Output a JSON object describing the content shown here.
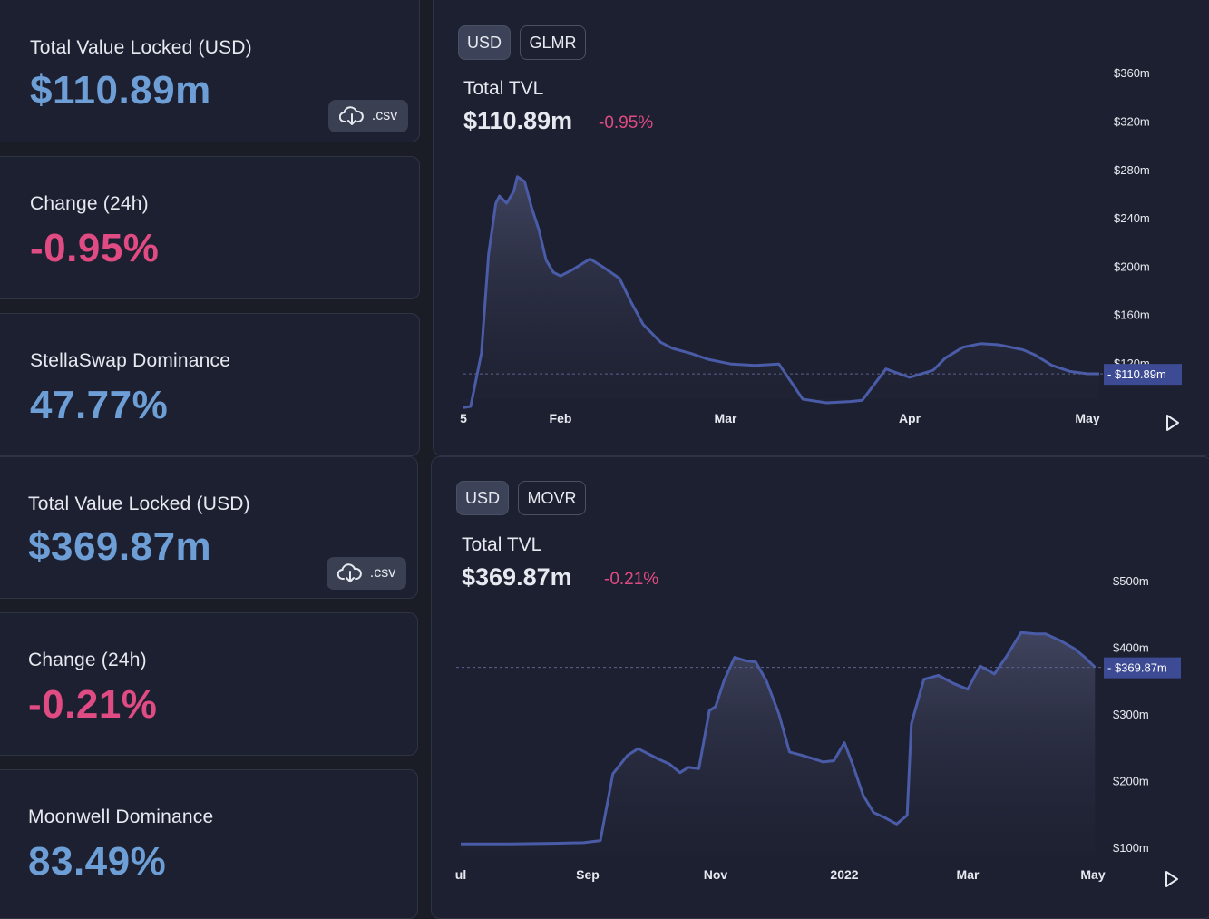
{
  "panel1": {
    "tvl_label": "Total Value Locked (USD)",
    "tvl_value": "$110.89m",
    "csv_label": ".csv",
    "change_label": "Change (24h)",
    "change_value": "-0.95%",
    "dominance_label": "StellaSwap Dominance",
    "dominance_value": "47.77%"
  },
  "chart1": {
    "toggles": [
      "USD",
      "GLMR"
    ],
    "active_toggle": "USD",
    "title": "Total TVL",
    "value": "$110.89m",
    "change": "-0.95%",
    "y_ticks": [
      "$360m",
      "$320m",
      "$280m",
      "$240m",
      "$200m",
      "$160m",
      "$120m"
    ],
    "x_ticks": [
      "5",
      "Feb",
      "Mar",
      "Apr",
      "May"
    ],
    "current_label": "$110.89m"
  },
  "panel2": {
    "tvl_label": "Total Value Locked (USD)",
    "tvl_value": "$369.87m",
    "csv_label": ".csv",
    "change_label": "Change (24h)",
    "change_value": "-0.21%",
    "dominance_label": "Moonwell Dominance",
    "dominance_value": "83.49%"
  },
  "chart2": {
    "toggles": [
      "USD",
      "MOVR"
    ],
    "active_toggle": "USD",
    "title": "Total TVL",
    "value": "$369.87m",
    "change": "-0.21%",
    "y_ticks": [
      "$500m",
      "$400m",
      "$300m",
      "$200m",
      "$100m"
    ],
    "x_ticks": [
      "ul",
      "Sep",
      "Nov",
      "2022",
      "Mar",
      "May"
    ],
    "current_label": "$369.87m"
  },
  "colors": {
    "line": "#4a5ba8",
    "current_label_bg": "#3d4a94",
    "negative": "#e14b83",
    "value_blue": "#6d9fd6"
  },
  "chart_data": [
    {
      "type": "area",
      "title": "Total TVL",
      "ylim": [
        80,
        370
      ],
      "current": 110.89,
      "x": [
        "2022-01-05",
        "2022-01-07",
        "2022-01-10",
        "2022-01-12",
        "2022-01-14",
        "2022-01-15",
        "2022-01-17",
        "2022-01-19",
        "2022-01-20",
        "2022-01-22",
        "2022-01-24",
        "2022-01-26",
        "2022-01-28",
        "2022-01-30",
        "2022-02-01",
        "2022-02-03",
        "2022-02-06",
        "2022-02-08",
        "2022-02-11",
        "2022-02-13",
        "2022-02-15",
        "2022-02-18",
        "2022-02-20",
        "2022-02-23",
        "2022-02-26",
        "2022-02-28",
        "2022-03-02",
        "2022-03-06",
        "2022-03-10",
        "2022-03-14",
        "2022-03-18",
        "2022-03-22",
        "2022-03-24",
        "2022-03-24",
        "2022-03-28",
        "2022-04-01",
        "2022-04-05",
        "2022-04-07",
        "2022-04-10",
        "2022-04-13",
        "2022-04-16",
        "2022-04-20",
        "2022-04-22",
        "2022-04-25",
        "2022-04-28",
        "2022-05-01",
        "2022-05-03"
      ],
      "values": [
        83,
        84,
        128,
        210,
        252,
        258,
        252,
        262,
        274,
        270,
        248,
        230,
        205,
        195,
        192,
        197,
        206,
        200,
        190,
        170,
        152,
        137,
        132,
        128,
        123,
        121,
        119,
        118,
        119,
        90,
        87,
        88,
        89,
        89,
        115,
        108,
        114,
        124,
        133,
        136,
        135,
        131,
        127,
        118,
        113,
        111,
        111
      ]
    },
    {
      "type": "area",
      "ylim": [
        90,
        520
      ],
      "current": 369.87,
      "x": [
        "2021-07-01",
        "2021-07-25",
        "2021-08-15",
        "2021-08-30",
        "2021-09-07",
        "2021-09-13",
        "2021-09-20",
        "2021-09-25",
        "2021-09-30",
        "2021-10-05",
        "2021-10-10",
        "2021-10-15",
        "2021-10-19",
        "2021-10-24",
        "2021-10-29",
        "2021-11-01",
        "2021-11-05",
        "2021-11-10",
        "2021-11-15",
        "2021-11-20",
        "2021-11-25",
        "2021-12-01",
        "2021-12-06",
        "2021-12-12",
        "2021-12-17",
        "2021-12-22",
        "2021-12-27",
        "2022-01-01",
        "2022-01-05",
        "2022-01-10",
        "2022-01-15",
        "2022-01-20",
        "2022-01-26",
        "2022-01-31",
        "2022-02-02",
        "2022-02-08",
        "2022-02-15",
        "2022-02-22",
        "2022-03-01",
        "2022-03-07",
        "2022-03-14",
        "2022-03-20",
        "2022-03-27",
        "2022-04-03",
        "2022-04-08",
        "2022-04-15",
        "2022-04-22",
        "2022-04-27",
        "2022-05-02"
      ],
      "values": [
        105,
        105,
        106,
        107,
        110,
        210,
        238,
        248,
        240,
        232,
        225,
        212,
        220,
        218,
        305,
        311,
        350,
        385,
        380,
        378,
        350,
        300,
        243,
        238,
        233,
        228,
        230,
        257,
        224,
        178,
        152,
        145,
        135,
        148,
        285,
        352,
        358,
        346,
        337,
        372,
        360,
        387,
        422,
        420,
        420,
        410,
        398,
        385,
        370
      ]
    }
  ]
}
